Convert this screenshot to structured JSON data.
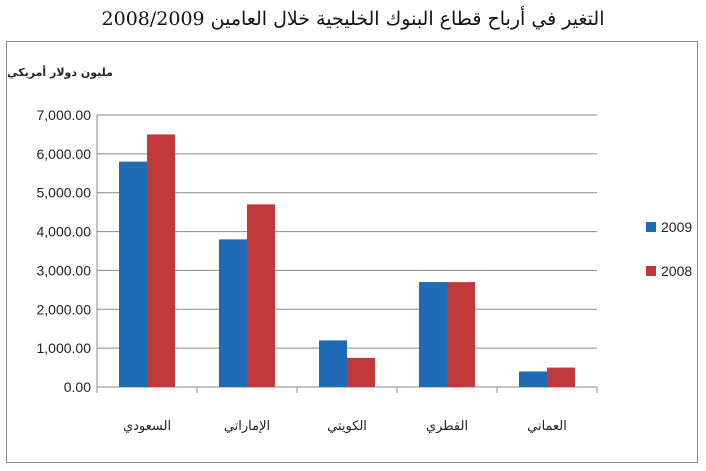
{
  "chart_data": {
    "type": "bar",
    "title": "التغير في أرباح قطاع البنوك الخليجية خلال العامين 2008/2009",
    "ylabel": "مليون دولار أمريكي",
    "xlabel": "",
    "ylim": [
      0,
      7000
    ],
    "yticks": [
      "0.00",
      "1,000.00",
      "2,000.00",
      "3,000.00",
      "4,000.00",
      "5,000.00",
      "6,000.00",
      "7,000.00"
    ],
    "categories": [
      "السعودي",
      "الإماراتي",
      "الكويتي",
      "القطري",
      "العماني"
    ],
    "series": [
      {
        "name": "2009",
        "color": "#1f6bb5",
        "values": [
          5800,
          3800,
          1200,
          2700,
          400
        ]
      },
      {
        "name": "2008",
        "color": "#c0393b",
        "values": [
          6500,
          4700,
          750,
          2700,
          500
        ]
      }
    ],
    "grid": true,
    "legend": "right"
  }
}
